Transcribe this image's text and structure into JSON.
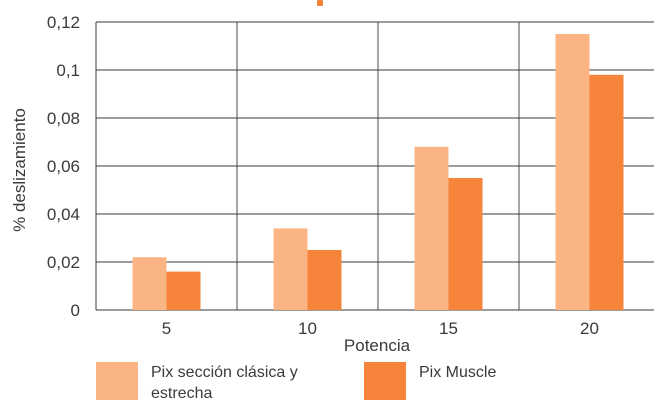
{
  "chart_data": {
    "type": "bar",
    "title": "",
    "xlabel": "Potencia",
    "ylabel": "% deslizamiento",
    "categories": [
      "5",
      "10",
      "15",
      "20"
    ],
    "ylim": [
      0,
      0.12
    ],
    "yticks": [
      "0",
      "0,02",
      "0,04",
      "0,06",
      "0,08",
      "0,1",
      "0,12"
    ],
    "grid": true,
    "legend_position": "bottom",
    "series": [
      {
        "name": "Pix sección clásica y estrecha",
        "values": [
          0.022,
          0.034,
          0.068,
          0.115
        ],
        "color": "#fbb584"
      },
      {
        "name": "Pix Muscle",
        "values": [
          0.016,
          0.025,
          0.055,
          0.098
        ],
        "color": "#f6843a"
      }
    ]
  }
}
